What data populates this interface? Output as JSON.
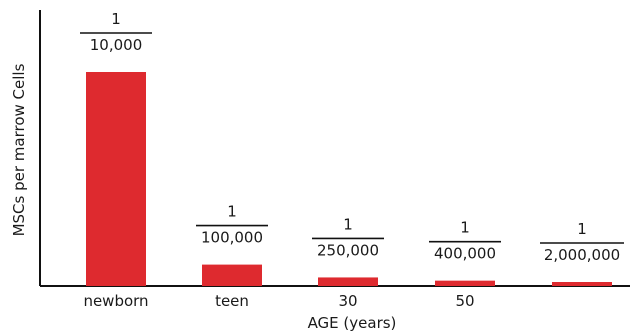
{
  "chart_data": {
    "type": "bar",
    "ylabel": "MSCs per marrow Cells",
    "xlabel": "AGE (years)",
    "categories": [
      "newborn",
      "teen",
      "30",
      "50",
      ""
    ],
    "values": [
      0.0001,
      1e-05,
      4e-06,
      2.5e-06,
      5e-07
    ],
    "data_labels": [
      {
        "numerator": "1",
        "denominator": "10,000"
      },
      {
        "numerator": "1",
        "denominator": "100,000"
      },
      {
        "numerator": "1",
        "denominator": "250,000"
      },
      {
        "numerator": "1",
        "denominator": "400,000"
      },
      {
        "numerator": "1",
        "denominator": "2,000,000"
      }
    ],
    "bar_color": "#de2a2f",
    "grid": false,
    "legend": "none"
  }
}
